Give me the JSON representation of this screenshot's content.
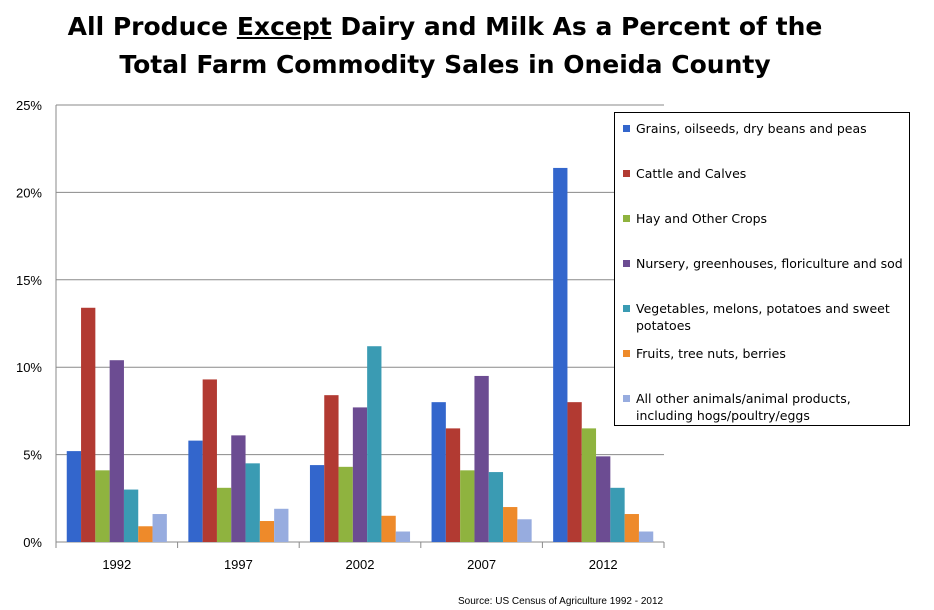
{
  "title": {
    "line1_prefix": "All Produce ",
    "line1_underlined": "Except",
    "line1_suffix": " Dairy and Milk As a Percent of the",
    "line2": "Total Farm Commodity Sales in Oneida County"
  },
  "source": "Source: US Census of Agriculture 1992 - 2012",
  "chart_data": {
    "type": "bar",
    "categories": [
      "1992",
      "1997",
      "2002",
      "2007",
      "2012"
    ],
    "y_ticks": [
      "0%",
      "5%",
      "10%",
      "15%",
      "20%",
      "25%"
    ],
    "ylim": [
      0,
      25
    ],
    "unit": "%",
    "grid": true,
    "legend_position": "right",
    "series": [
      {
        "name": "Grains, oilseeds, dry beans and peas",
        "color": "#3366cc",
        "values": [
          5.2,
          5.8,
          4.4,
          8.0,
          21.4
        ]
      },
      {
        "name": "Cattle and Calves",
        "color": "#b23a32",
        "values": [
          13.4,
          9.3,
          8.4,
          6.5,
          8.0
        ]
      },
      {
        "name": "Hay and Other Crops",
        "color": "#8fb33f",
        "values": [
          4.1,
          3.1,
          4.3,
          4.1,
          6.5
        ]
      },
      {
        "name": "Nursery, greenhouses, floriculture and sod",
        "color": "#6c4c92",
        "values": [
          10.4,
          6.1,
          7.7,
          9.5,
          4.9
        ]
      },
      {
        "name": "Vegetables, melons, potatoes and sweet potatoes",
        "color": "#3a9bb3",
        "values": [
          3.0,
          4.5,
          11.2,
          4.0,
          3.1
        ]
      },
      {
        "name": "Fruits, tree nuts, berries",
        "color": "#ee8a2a",
        "values": [
          0.9,
          1.2,
          1.5,
          2.0,
          1.6
        ]
      },
      {
        "name": "All other animals/animal products, including hogs/poultry/eggs",
        "color": "#97acdf",
        "values": [
          1.6,
          1.9,
          0.6,
          1.3,
          0.6
        ]
      }
    ]
  }
}
